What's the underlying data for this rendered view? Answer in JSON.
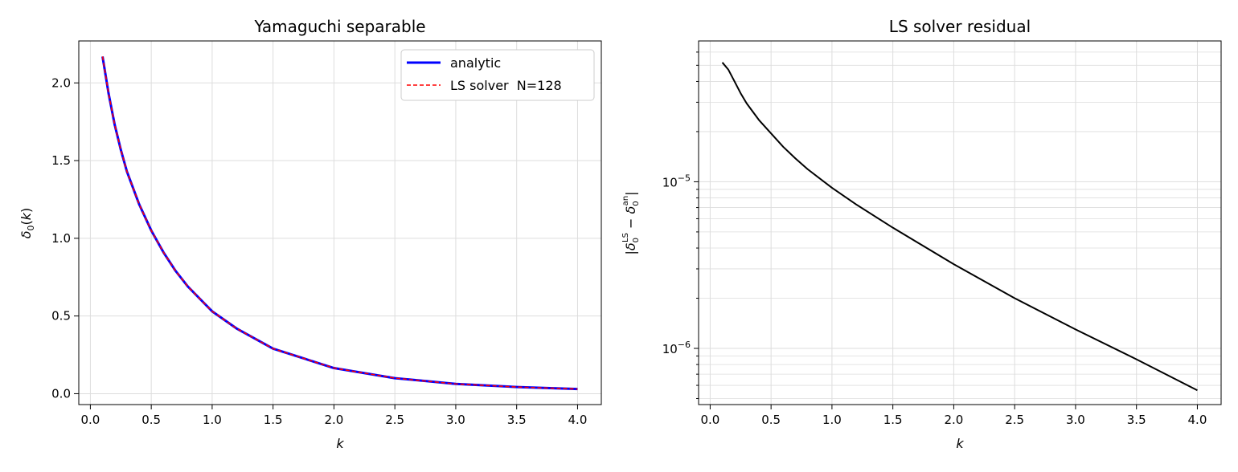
{
  "chart_data": [
    {
      "type": "line",
      "title": "Yamaguchi separable",
      "xlabel": "k",
      "ylabel": "δ0(k)",
      "xlim": [
        -0.095,
        4.195
      ],
      "ylim": [
        -0.07,
        2.27
      ],
      "xticks": [
        "0.0",
        "0.5",
        "1.0",
        "1.5",
        "2.0",
        "2.5",
        "3.0",
        "3.5",
        "4.0"
      ],
      "yticks": [
        "0.0",
        "0.5",
        "1.0",
        "1.5",
        "2.0"
      ],
      "grid": true,
      "legend": "top-right",
      "x": [
        0.1,
        0.15,
        0.2,
        0.25,
        0.3,
        0.4,
        0.5,
        0.6,
        0.7,
        0.8,
        1.0,
        1.2,
        1.5,
        2.0,
        2.5,
        3.0,
        3.5,
        4.0
      ],
      "series": [
        {
          "name": "analytic",
          "color": "#0000ff",
          "style": "solid",
          "values": [
            2.17,
            1.93,
            1.73,
            1.57,
            1.43,
            1.22,
            1.05,
            0.91,
            0.79,
            0.69,
            0.53,
            0.42,
            0.29,
            0.165,
            0.1,
            0.063,
            0.043,
            0.03
          ]
        },
        {
          "name": "LS solver  N=128",
          "color": "#ff0000",
          "style": "dashed",
          "values": [
            2.17,
            1.93,
            1.73,
            1.57,
            1.43,
            1.22,
            1.05,
            0.91,
            0.79,
            0.69,
            0.53,
            0.42,
            0.29,
            0.165,
            0.1,
            0.063,
            0.043,
            0.03
          ]
        }
      ]
    },
    {
      "type": "line",
      "title": "LS solver residual",
      "xlabel": "k",
      "ylabel": "|δ0LS − δ0an|",
      "yscale": "log",
      "xlim": [
        -0.095,
        4.195
      ],
      "ylim": [
        4.6e-07,
        7e-05
      ],
      "xticks": [
        "0.0",
        "0.5",
        "1.0",
        "1.5",
        "2.0",
        "2.5",
        "3.0",
        "3.5",
        "4.0"
      ],
      "yticks": [
        {
          "value": 1e-05,
          "base": "10",
          "exp": "−5"
        },
        {
          "value": 1e-06,
          "base": "10",
          "exp": "−6"
        }
      ],
      "grid": true,
      "x": [
        0.1,
        0.15,
        0.2,
        0.25,
        0.3,
        0.4,
        0.5,
        0.6,
        0.7,
        0.8,
        1.0,
        1.2,
        1.5,
        2.0,
        2.5,
        3.0,
        3.5,
        4.0
      ],
      "series": [
        {
          "color": "#000000",
          "style": "solid",
          "values": [
            5.2e-05,
            4.7e-05,
            4e-05,
            3.4e-05,
            2.95e-05,
            2.35e-05,
            1.95e-05,
            1.62e-05,
            1.38e-05,
            1.19e-05,
            9.2e-06,
            7.3e-06,
            5.3e-06,
            3.2e-06,
            2e-06,
            1.3e-06,
            8.6e-07,
            5.6e-07
          ]
        }
      ]
    }
  ]
}
